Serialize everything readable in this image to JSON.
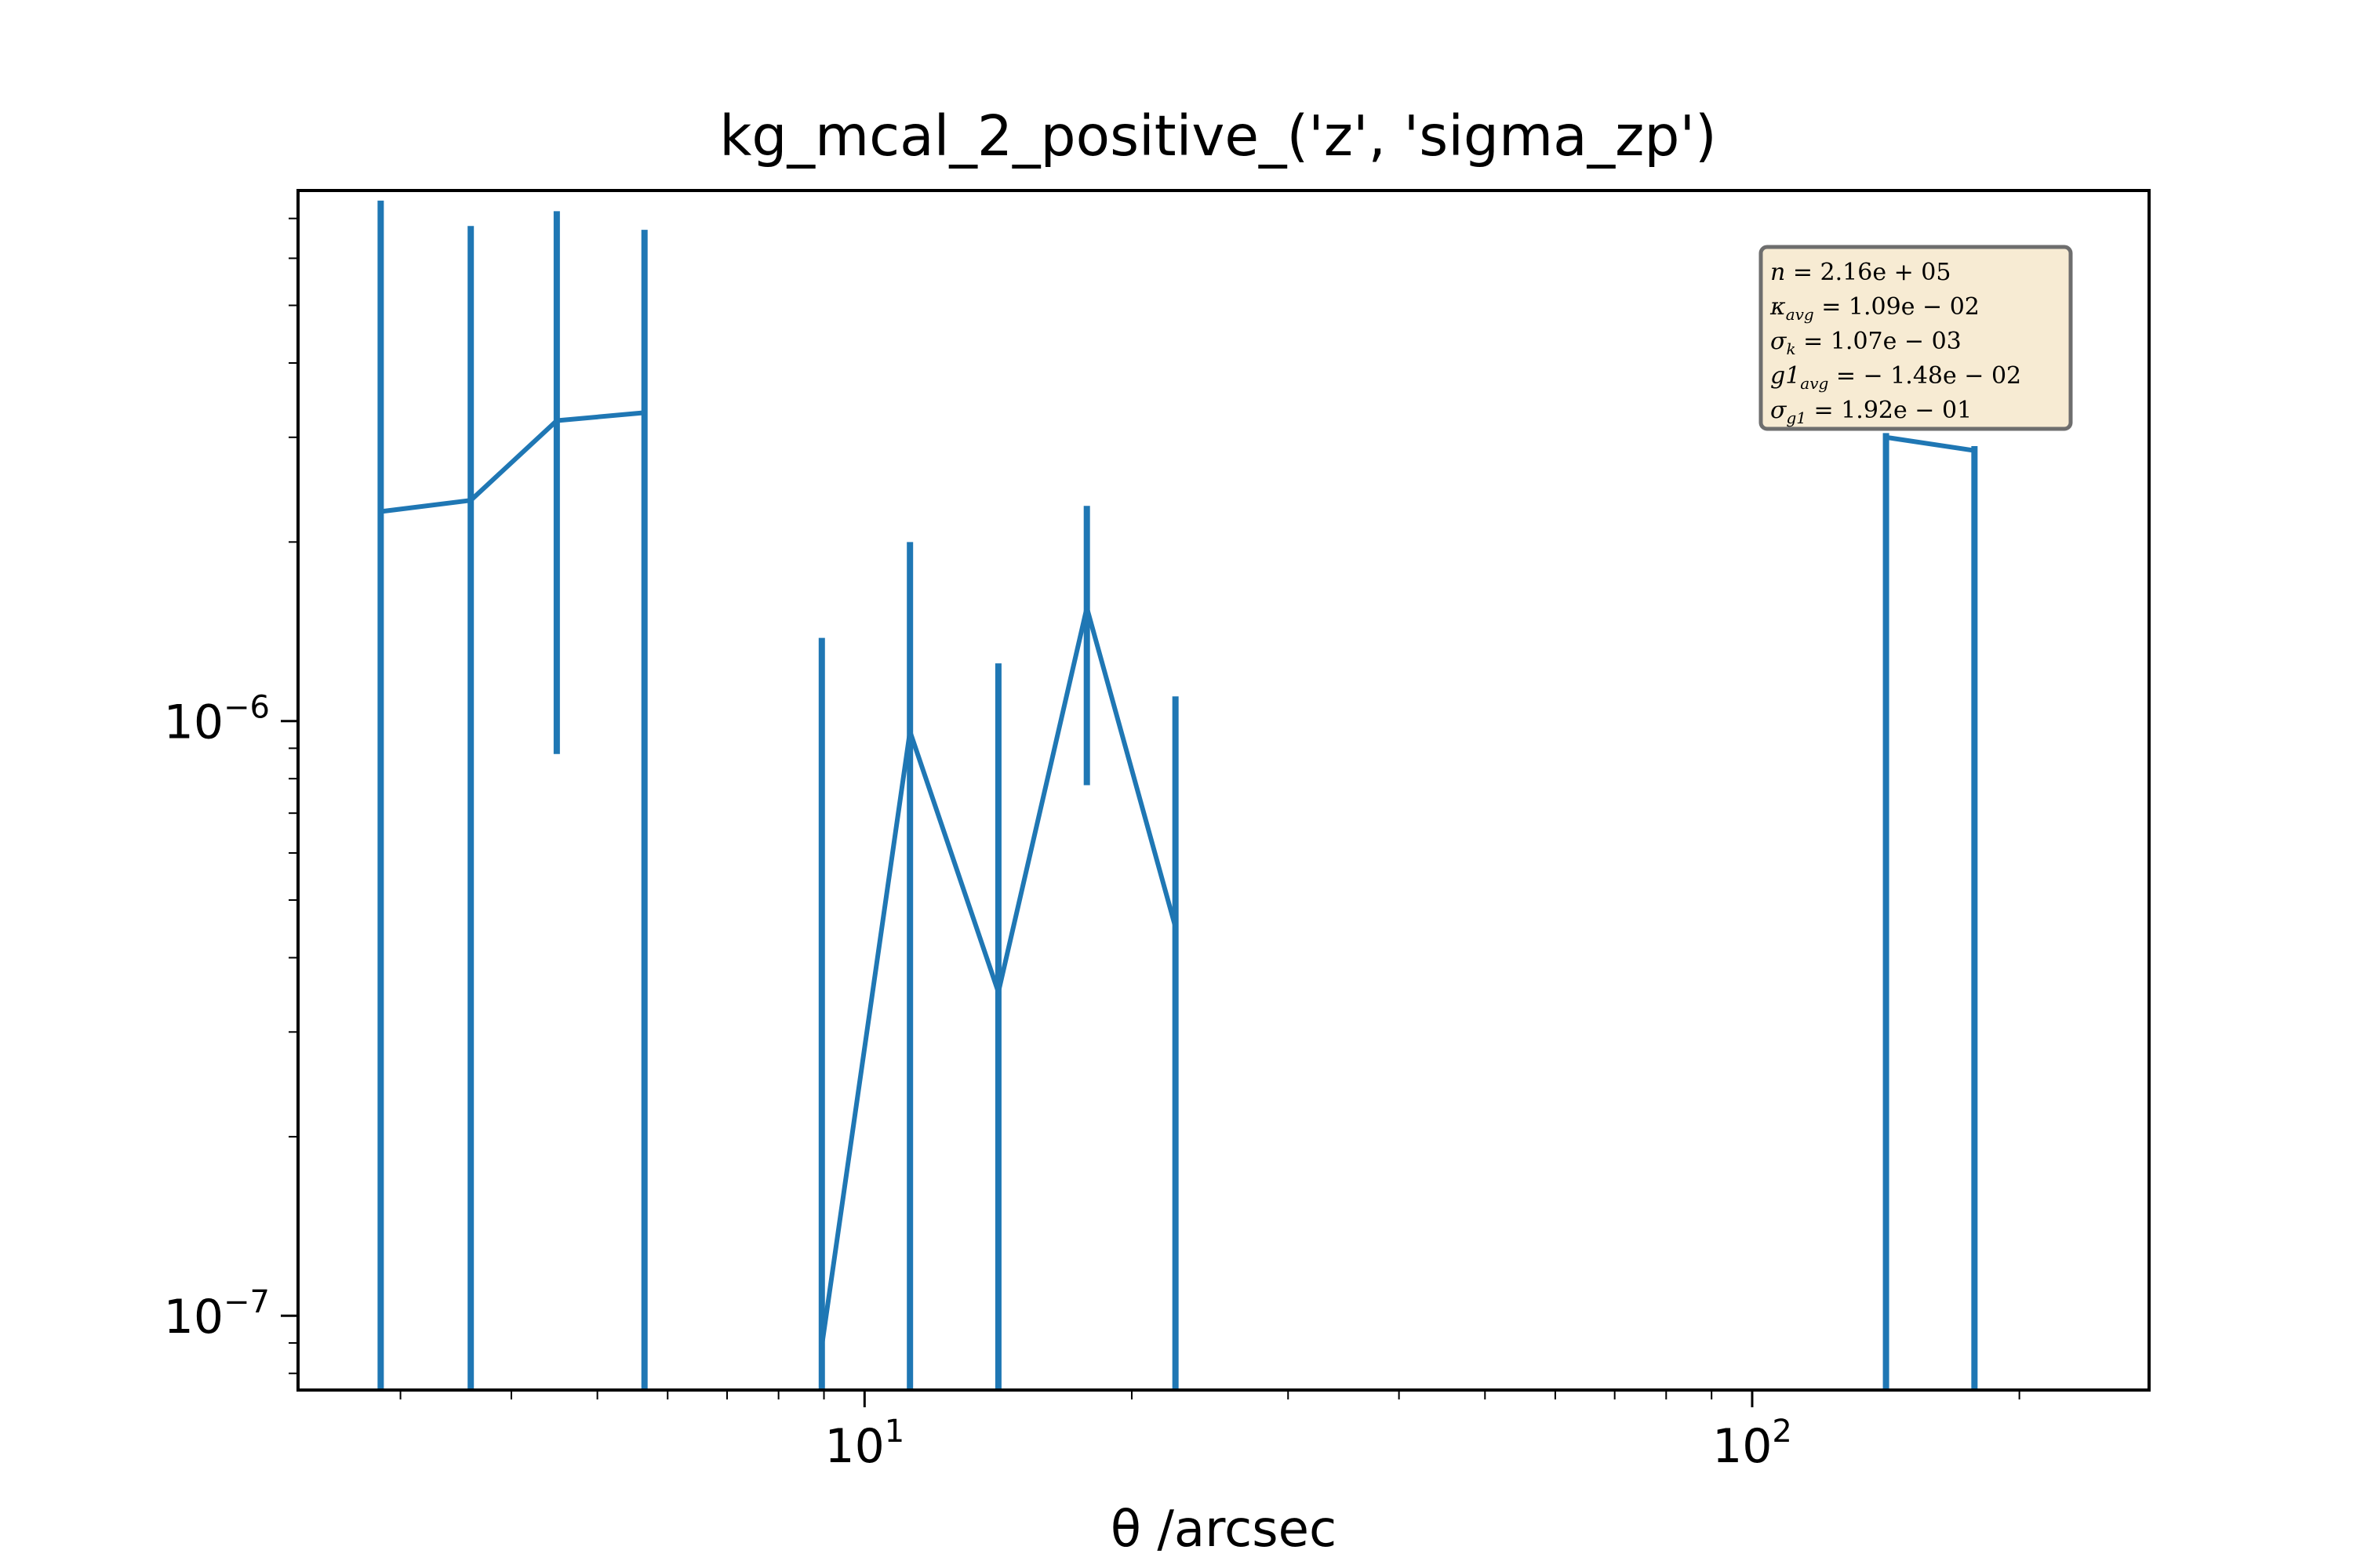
{
  "chart_data": {
    "type": "line",
    "title": "kg_mcal_2_positive_('z', 'sigma_zp')",
    "xlabel": "θ /arcsec",
    "x_scale": "log",
    "y_scale": "log",
    "xlim": [
      2.3,
      280
    ],
    "ylim": [
      7.5e-08,
      7.8e-06
    ],
    "x_tick_labels": [
      {
        "value": 10,
        "base": "10",
        "exp": "1"
      },
      {
        "value": 100,
        "base": "10",
        "exp": "2"
      }
    ],
    "y_tick_labels": [
      {
        "value": 1e-07,
        "base": "10",
        "exp": "−7"
      },
      {
        "value": 1e-06,
        "base": "10",
        "exp": "−6"
      }
    ],
    "series": [
      {
        "color": "#1f77b4",
        "points": [
          {
            "x": 2.85,
            "y": 2.25e-06,
            "ylo": 7.5e-08,
            "yhi": 7.5e-06
          },
          {
            "x": 3.6,
            "y": 2.35e-06,
            "ylo": 7.5e-08,
            "yhi": 6.8e-06
          },
          {
            "x": 4.5,
            "y": 3.2e-06,
            "ylo": 8.8e-07,
            "yhi": 7.2e-06
          },
          {
            "x": 5.65,
            "y": 3.3e-06,
            "ylo": 7.5e-08,
            "yhi": 6.7e-06
          },
          {
            "x": 8.95,
            "y": 8.9e-08,
            "ylo": 7.5e-08,
            "yhi": 1.38e-06
          },
          {
            "x": 11.25,
            "y": 9.6e-07,
            "ylo": 7.5e-08,
            "yhi": 2e-06
          },
          {
            "x": 14.15,
            "y": 3.5e-07,
            "ylo": 7.5e-08,
            "yhi": 1.25e-06
          },
          {
            "x": 17.8,
            "y": 1.55e-06,
            "ylo": 7.8e-07,
            "yhi": 2.3e-06
          },
          {
            "x": 22.4,
            "y": 4.5e-07,
            "ylo": 7.5e-08,
            "yhi": 1.1e-06
          },
          {
            "x": 141.5,
            "y": 3e-06,
            "ylo": 7.5e-08,
            "yhi": 3.05e-06
          },
          {
            "x": 178.0,
            "y": 2.85e-06,
            "ylo": 7.5e-08,
            "yhi": 2.9e-06
          }
        ],
        "line_segments": [
          [
            0,
            1,
            2,
            3
          ],
          [
            4,
            5,
            6,
            7,
            8
          ],
          [
            9,
            10
          ]
        ]
      }
    ],
    "stats_box": {
      "placement": "top-right",
      "background": "#f5e6c8",
      "entries": [
        {
          "sym": "n",
          "sub": "",
          "val": " = 2.16e + 05"
        },
        {
          "sym": "κ",
          "sub": "avg",
          "val": " = 1.09e − 02"
        },
        {
          "sym": "σ",
          "sub": "k",
          "val": " = 1.07e − 03"
        },
        {
          "sym": "g1",
          "sub": "avg",
          "val": " = − 1.48e − 02"
        },
        {
          "sym": "σ",
          "sub": "g1",
          "val": " = 1.92e − 01"
        }
      ]
    }
  }
}
